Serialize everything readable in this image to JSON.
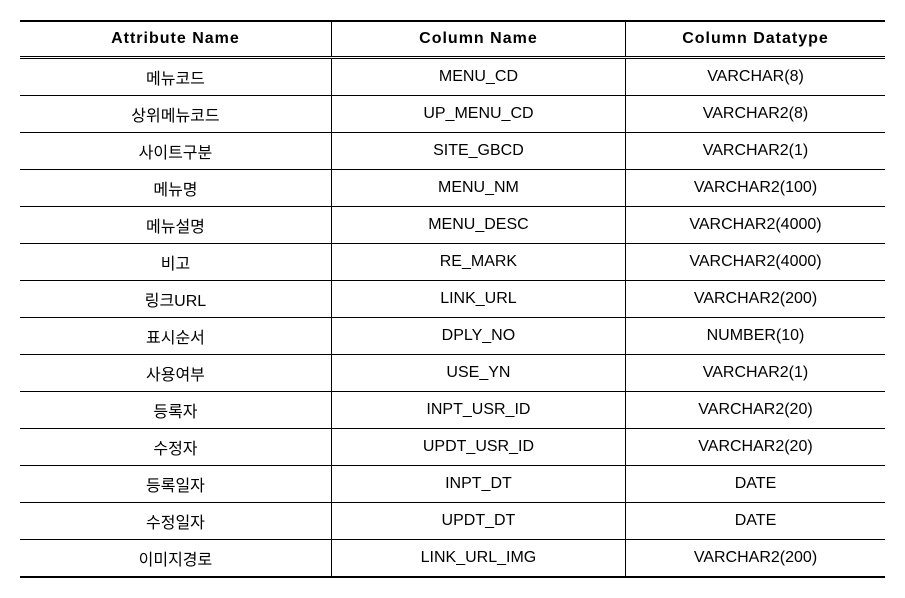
{
  "table": {
    "headers": [
      "Attribute Name",
      "Column Name",
      "Column Datatype"
    ],
    "rows": [
      [
        "메뉴코드",
        "MENU_CD",
        "VARCHAR(8)"
      ],
      [
        "상위메뉴코드",
        "UP_MENU_CD",
        "VARCHAR2(8)"
      ],
      [
        "사이트구분",
        "SITE_GBCD",
        "VARCHAR2(1)"
      ],
      [
        "메뉴명",
        "MENU_NM",
        "VARCHAR2(100)"
      ],
      [
        "메뉴설명",
        "MENU_DESC",
        "VARCHAR2(4000)"
      ],
      [
        "비고",
        "RE_MARK",
        "VARCHAR2(4000)"
      ],
      [
        "링크URL",
        "LINK_URL",
        "VARCHAR2(200)"
      ],
      [
        "표시순서",
        "DPLY_NO",
        "NUMBER(10)"
      ],
      [
        "사용여부",
        "USE_YN",
        "VARCHAR2(1)"
      ],
      [
        "등록자",
        "INPT_USR_ID",
        "VARCHAR2(20)"
      ],
      [
        "수정자",
        "UPDT_USR_ID",
        "VARCHAR2(20)"
      ],
      [
        "등록일자",
        "INPT_DT",
        "DATE"
      ],
      [
        "수정일자",
        "UPDT_DT",
        "DATE"
      ],
      [
        "이미지경로",
        "LINK_URL_IMG",
        "VARCHAR2(200)"
      ]
    ],
    "col_widths": [
      "36%",
      "34%",
      "30%"
    ],
    "header_fontsize": 16,
    "cell_fontsize": 16,
    "border_color": "#000000",
    "background_color": "#ffffff"
  }
}
